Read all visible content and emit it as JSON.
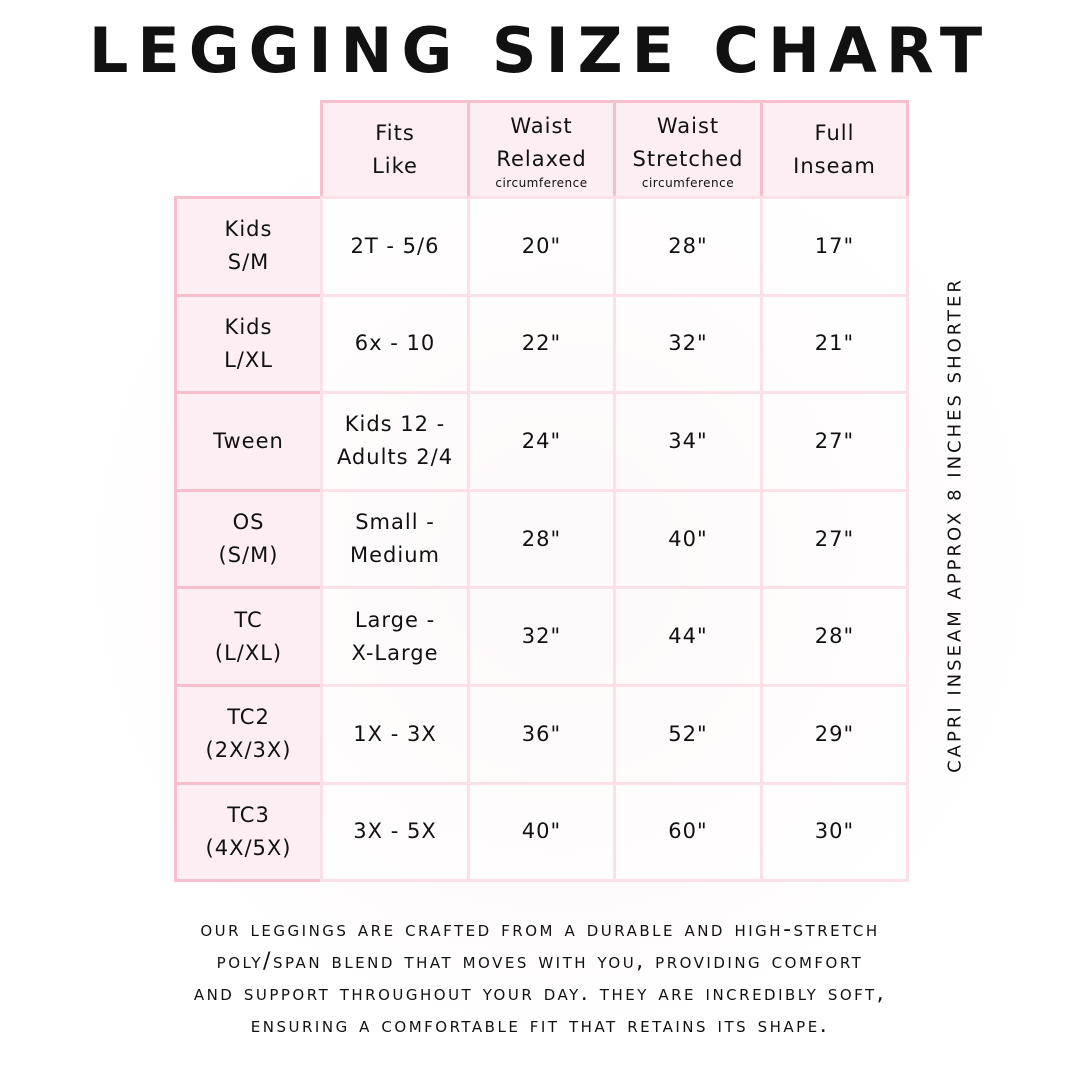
{
  "title": "LEGGING SIZE CHART",
  "table": {
    "headers": [
      {
        "lines": [
          "Fits",
          "Like"
        ],
        "sub": ""
      },
      {
        "lines": [
          "Waist",
          "Relaxed"
        ],
        "sub": "circumference"
      },
      {
        "lines": [
          "Waist",
          "Stretched"
        ],
        "sub": "circumference"
      },
      {
        "lines": [
          "Full",
          "Inseam"
        ],
        "sub": ""
      }
    ],
    "rows": [
      {
        "size": [
          "Kids",
          "S/M"
        ],
        "fits": [
          "2T - 5/6"
        ],
        "relaxed": "20\"",
        "stretched": "28\"",
        "inseam": "17\""
      },
      {
        "size": [
          "Kids",
          "L/XL"
        ],
        "fits": [
          "6x - 10"
        ],
        "relaxed": "22\"",
        "stretched": "32\"",
        "inseam": "21\""
      },
      {
        "size": [
          "Tween"
        ],
        "fits": [
          "Kids 12 -",
          "Adults 2/4"
        ],
        "relaxed": "24\"",
        "stretched": "34\"",
        "inseam": "27\""
      },
      {
        "size": [
          "OS",
          "(S/M)"
        ],
        "fits": [
          "Small -",
          "Medium"
        ],
        "relaxed": "28\"",
        "stretched": "40\"",
        "inseam": "27\""
      },
      {
        "size": [
          "TC",
          "(L/XL)"
        ],
        "fits": [
          "Large -",
          "X-Large"
        ],
        "relaxed": "32\"",
        "stretched": "44\"",
        "inseam": "28\""
      },
      {
        "size": [
          "TC2",
          "(2X/3X)"
        ],
        "fits": [
          "1X - 3X"
        ],
        "relaxed": "36\"",
        "stretched": "52\"",
        "inseam": "29\""
      },
      {
        "size": [
          "TC3",
          "(4X/5X)"
        ],
        "fits": [
          "3X - 5X"
        ],
        "relaxed": "40\"",
        "stretched": "60\"",
        "inseam": "30\""
      }
    ]
  },
  "side_note": "CAPRI INSEAM APPROX 8 INCHES SHORTER",
  "footer": [
    "OUR LEGGINGS ARE CRAFTED FROM A DURABLE AND HIGH-STRETCH",
    "POLY/SPAN BLEND THAT MOVES WITH YOU, PROVIDING COMFORT",
    "AND SUPPORT THROUGHOUT YOUR DAY. THEY ARE INCREDIBLY SOFT,",
    "ENSURING A COMFORTABLE FIT THAT RETAINS ITS SHAPE."
  ],
  "colors": {
    "border": "#f7bfce",
    "header_fill": "#fdeef3"
  }
}
